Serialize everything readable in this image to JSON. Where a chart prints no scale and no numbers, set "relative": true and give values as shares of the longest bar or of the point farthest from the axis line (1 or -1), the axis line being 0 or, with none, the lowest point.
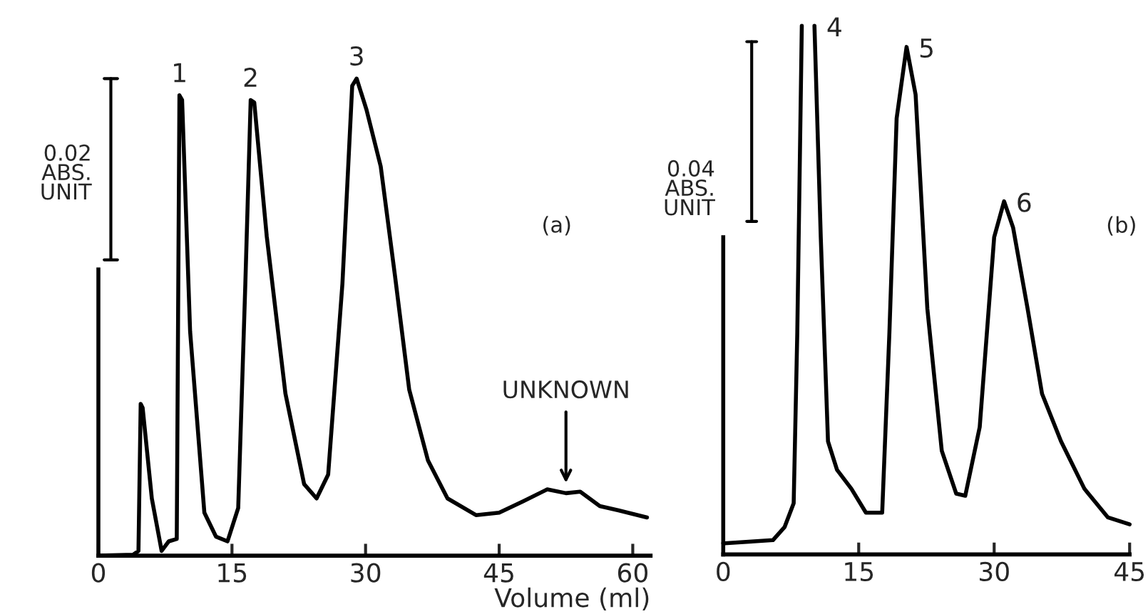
{
  "chart_data": [
    {
      "type": "line",
      "relative": true,
      "xlabel": "Volume (ml)",
      "xlim": [
        0,
        62
      ],
      "xticks": [
        0,
        15,
        30,
        45,
        60
      ],
      "tick_labels": "x",
      "grid": false,
      "legend": false,
      "series": [
        {
          "color": "#000000",
          "x": [
            0,
            3.9,
            4.5,
            4.75,
            4.97,
            6.0,
            7.1,
            7.9,
            8.8,
            9.1,
            9.4,
            10.3,
            11.9,
            13.2,
            14.5,
            15.7,
            16.5,
            17.1,
            17.5,
            18.9,
            21.0,
            23.1,
            24.5,
            25.8,
            27.4,
            28.5,
            29.0,
            30.1,
            31.7,
            33.3,
            34.9,
            37.0,
            39.2,
            42.4,
            45.0,
            47.7,
            50.4,
            52.5,
            54.1,
            56.3,
            58.4,
            61.6
          ],
          "values": [
            0,
            0.002,
            0.01,
            0.318,
            0.31,
            0.12,
            0.01,
            0.03,
            0.035,
            0.965,
            0.955,
            0.47,
            0.09,
            0.04,
            0.03,
            0.1,
            0.57,
            0.955,
            0.95,
            0.67,
            0.34,
            0.15,
            0.12,
            0.17,
            0.57,
            0.985,
            1,
            0.935,
            0.816,
            0.587,
            0.348,
            0.2,
            0.12,
            0.085,
            0.09,
            0.114,
            0.139,
            0.131,
            0.134,
            0.104,
            0.095,
            0.08
          ]
        },
        {
          "type": "line",
          "color": "#000000",
          "x": [
            1.4,
            1.4
          ],
          "values": [
            0.62,
            1
          ]
        }
      ],
      "annotations": [
        "0.02\nABS.\nUNIT",
        "(a)",
        {
          "text": "1",
          "x": 9.1,
          "y": 0.965
        },
        {
          "text": "2",
          "x": 17.1,
          "y": 0.955
        },
        {
          "text": "3",
          "x": 29.0,
          "y": 1
        },
        {
          "text": "UNKNOWN",
          "x": 52.5,
          "y": 0.14
        }
      ]
    },
    {
      "type": "line",
      "relative": true,
      "xlim": [
        0,
        45
      ],
      "xticks": [
        0,
        15,
        30,
        45
      ],
      "tick_labels": "x",
      "grid": false,
      "legend": false,
      "series": [
        {
          "color": "#000000",
          "x": [
            0,
            5.5,
            6.8,
            7.8,
            8.2,
            8.7,
            9.4,
            10.1,
            10.8,
            11.6,
            12.6,
            14.2,
            15.8,
            17.6,
            18.4,
            19.2,
            20.3,
            21.3,
            22.6,
            24.2,
            25.8,
            26.8,
            28.4,
            30.0,
            31.1,
            32.1,
            33.7,
            35.3,
            37.4,
            40.0,
            42.6,
            45.0
          ],
          "values": [
            0.021,
            0.027,
            0.052,
            0.097,
            0.42,
            1,
            null,
            1,
            0.6,
            0.214,
            0.16,
            0.124,
            0.079,
            0.079,
            0.42,
            0.825,
            0.96,
            0.87,
            0.465,
            0.196,
            0.115,
            0.111,
            0.241,
            0.6,
            0.668,
            0.618,
            0.465,
            0.304,
            0.214,
            0.124,
            0.07,
            0.057
          ]
        },
        {
          "type": "line",
          "color": "#000000",
          "x": [
            3.15,
            3.15
          ],
          "values": [
            0.63,
            0.97
          ]
        }
      ],
      "annotations": [
        "0.04\nABS.\nUNIT",
        "(b)",
        {
          "text": "4",
          "x": 10.1,
          "y": 1
        },
        {
          "text": "5",
          "x": 20.3,
          "y": 0.96
        },
        {
          "text": "6",
          "x": 31.1,
          "y": 0.668
        }
      ]
    }
  ]
}
